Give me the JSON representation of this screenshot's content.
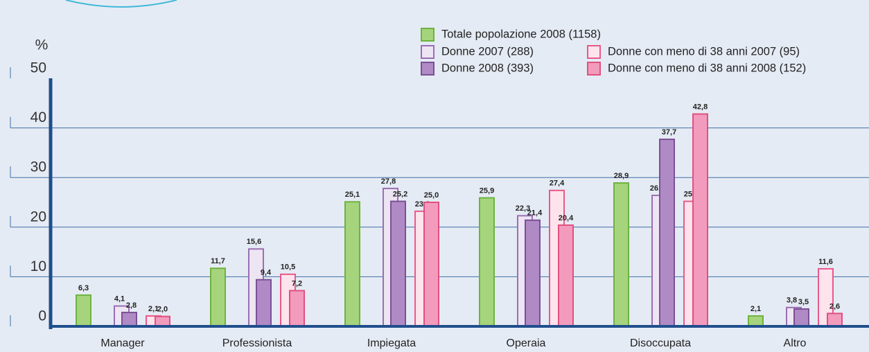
{
  "chart_data": {
    "type": "bar",
    "y_label": "%",
    "categories": [
      "Manager",
      "Professionista",
      "Impiegata",
      "Operaia",
      "Disoccupata",
      "Altro"
    ],
    "series": [
      {
        "name": "Totale popolazione 2008 (1158)",
        "color": "#a6d47c",
        "values": [
          6.3,
          11.7,
          25.1,
          25.9,
          28.9,
          2.1
        ],
        "value_labels": [
          "6,3",
          "11,7",
          "25,1",
          "25,9",
          "28,9",
          "2,1"
        ]
      },
      {
        "name": "Donne 2007 (288)",
        "color": "#ede5f3",
        "values": [
          4.1,
          15.6,
          27.8,
          22.3,
          26.4,
          3.8
        ],
        "value_labels": [
          "4,1",
          "15,6",
          "27,8",
          "22,3",
          "26,4",
          "3,8"
        ]
      },
      {
        "name": "Donne 2008 (393)",
        "color": "#b08ac4",
        "values": [
          2.8,
          9.4,
          25.2,
          21.4,
          37.7,
          3.5
        ],
        "value_labels": [
          "2,8",
          "9,4",
          "25,2",
          "21,4",
          "37,7",
          "3,5"
        ]
      },
      {
        "name": "Donne con meno di 38 anni 2007 (95)",
        "color": "#fde3ec",
        "values": [
          2.1,
          10.5,
          23.2,
          27.4,
          25.2,
          11.6
        ],
        "value_labels": [
          "2,1",
          "10,5",
          "23,2",
          "27,4",
          "25,2",
          "11,6"
        ]
      },
      {
        "name": "Donne con meno di 38 anni 2008 (152)",
        "color": "#f29bbd",
        "values": [
          2.0,
          7.2,
          25.0,
          20.4,
          42.8,
          2.6
        ],
        "value_labels": [
          "2,0",
          "7,2",
          "25,0",
          "20,4",
          "42,8",
          "2,6"
        ]
      }
    ],
    "ylim": [
      0,
      50
    ],
    "yticks": [
      0,
      10,
      20,
      30,
      40,
      50
    ],
    "grid": true
  }
}
